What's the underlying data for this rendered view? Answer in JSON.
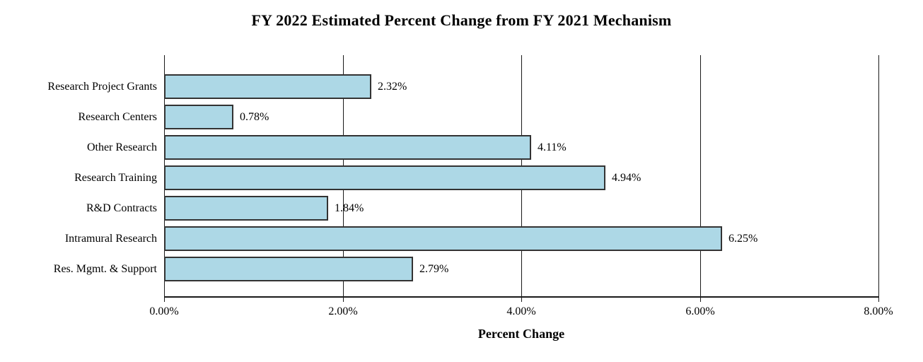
{
  "chart_data": {
    "type": "bar",
    "orientation": "horizontal",
    "title": "FY 2022 Estimated Percent Change from FY 2021 Mechanism",
    "xlabel": "Percent Change",
    "categories": [
      "Research Project Grants",
      "Research Centers",
      "Other Research",
      "Research Training",
      "R&D Contracts",
      "Intramural Research",
      "Res. Mgmt. & Support"
    ],
    "values": [
      2.32,
      0.78,
      4.11,
      4.94,
      1.84,
      6.25,
      2.79
    ],
    "value_labels": [
      "2.32%",
      "0.78%",
      "4.11%",
      "4.94%",
      "1.84%",
      "6.25%",
      "2.79%"
    ],
    "xlim": [
      0,
      8
    ],
    "x_tick_values": [
      0,
      2,
      4,
      6,
      8
    ],
    "x_tick_labels": [
      "0.00%",
      "2.00%",
      "4.00%",
      "6.00%",
      "8.00%"
    ],
    "grid": "vertical-gridlines-behind-bars",
    "legend": "none",
    "colors": {
      "bar_fill": "#ADD8E6",
      "bar_border": "#333333",
      "axis": "#1a1a1a",
      "text": "#000000",
      "background": "#ffffff"
    }
  }
}
